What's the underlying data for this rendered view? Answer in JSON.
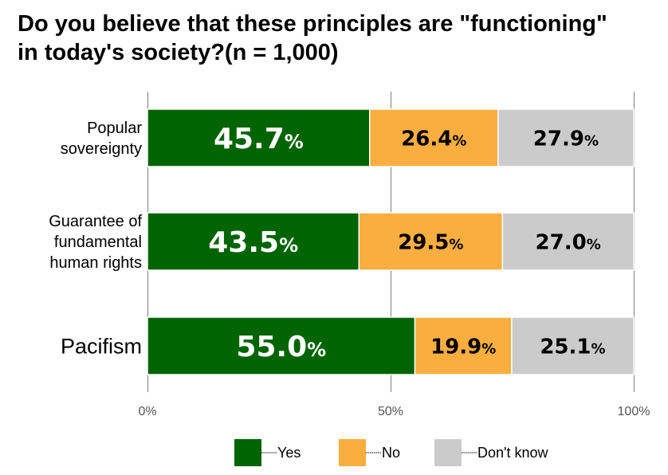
{
  "title": {
    "line1": "Do you believe that these principles are \"functioning\"",
    "line2": "in today's society?(n = 1,000)"
  },
  "chart_data": {
    "type": "bar",
    "orientation": "horizontal",
    "stacked": true,
    "title": "Do you believe that these principles are \"functioning\" in today's society?(n = 1,000)",
    "categories": [
      [
        "Popular",
        "sovereignty"
      ],
      [
        "Guarantee of",
        "fundamental",
        "human rights"
      ],
      [
        "Pacifism"
      ]
    ],
    "series": [
      {
        "name": "Yes",
        "color": "#006400",
        "values": [
          45.7,
          43.5,
          55.0
        ]
      },
      {
        "name": "No",
        "color": "#f9ae3f",
        "values": [
          26.4,
          29.5,
          19.9
        ]
      },
      {
        "name": "Don't know",
        "color": "#cbcbcb",
        "values": [
          27.9,
          27.0,
          25.1
        ]
      }
    ],
    "value_label_text": [
      [
        "45.7",
        "43.5",
        "55.0"
      ],
      [
        "26.4",
        "29.5",
        "19.9"
      ],
      [
        "27.9",
        "27.0",
        "25.1"
      ]
    ],
    "value_suffix": "%",
    "xlim": [
      0,
      100
    ],
    "xticks": [
      "0%",
      "50%",
      "100%"
    ],
    "grid": true,
    "legend_position": "bottom"
  }
}
